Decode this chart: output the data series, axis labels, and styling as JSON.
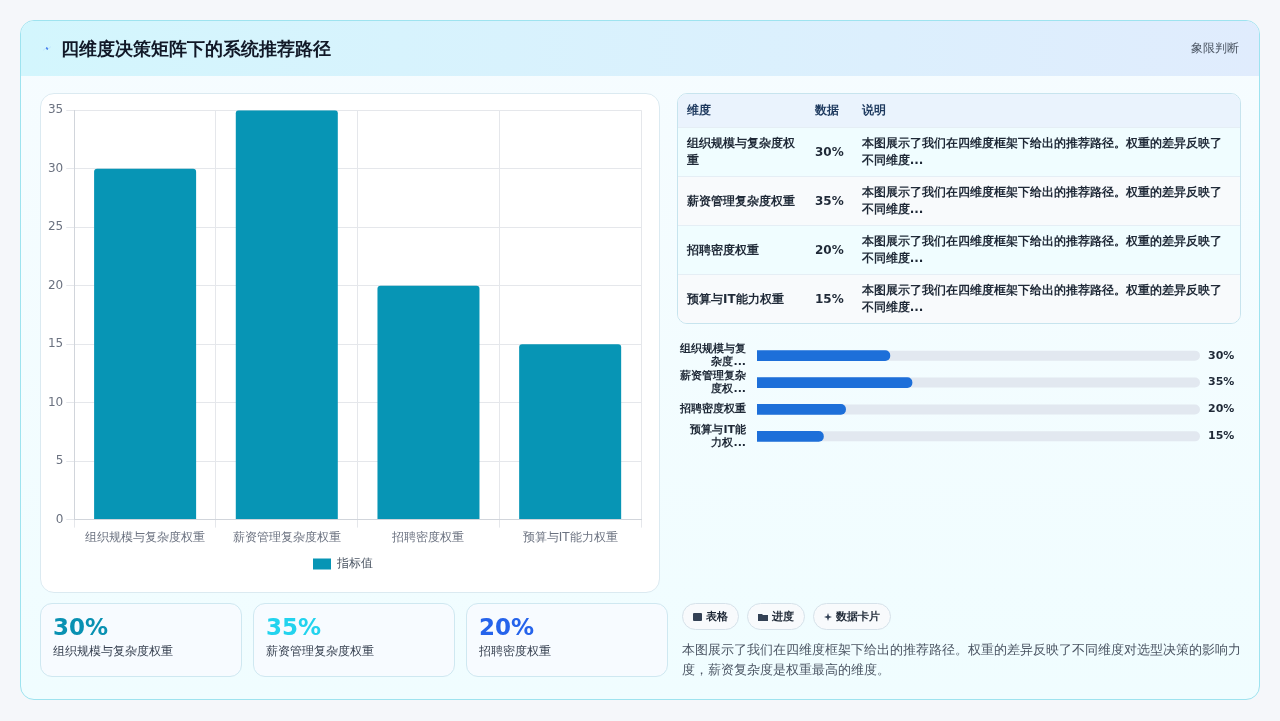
{
  "chart_data": [
    {
      "type": "bar",
      "title": "四维度决策矩阵下的系统推荐路径",
      "annotations": [
        "象限判断"
      ],
      "categories": [
        "组织规模与复杂度权重",
        "薪资管理复杂度权重",
        "招聘密度权重",
        "预算与IT能力权重"
      ],
      "series": [
        {
          "name": "指标值",
          "color": "#0795b5",
          "values": [
            30,
            35,
            20,
            15
          ]
        }
      ],
      "ylim": [
        0,
        35
      ],
      "yticks": [
        0,
        5,
        10,
        15,
        20,
        25,
        30,
        35
      ],
      "grid": true,
      "legend": "bottom"
    },
    {
      "type": "other",
      "annotations": [
        "维度",
        "数据",
        "说明",
        "本图展示了我们在四维度框架下给出的推荐路径。权重的差异反映了不同维度...",
        "本图展示了我们在四维度框架下给出的推荐路径。权重的差异反映了不同维度...",
        "本图展示了我们在四维度框架下给出的推荐路径。权重的差异反映了不同维度...",
        "本图展示了我们在四维度框架下给出的推荐路径。权重的差异反映了不同维度..."
      ],
      "categories": [
        "组织规模与复杂度权重",
        "薪资管理复杂度权重",
        "招聘密度权重",
        "预算与IT能力权重"
      ],
      "value_labels": [
        "30%",
        "35%",
        "20%",
        "15%"
      ]
    },
    {
      "type": "bar",
      "orientation": "horizontal",
      "categories": [
        "组织规模与复杂度...",
        "薪资管理复杂度权...",
        "招聘密度权重",
        "预算与IT能力权..."
      ],
      "values": [
        30,
        35,
        20,
        15
      ],
      "color": "#1d6fd9",
      "xlim": [
        0,
        100
      ],
      "value_labels": [
        "30%",
        "35%",
        "20%",
        "15%"
      ],
      "tick_labels": "y"
    },
    {
      "type": "other",
      "categories": [
        "组织规模与复杂度权重",
        "薪资管理复杂度权重",
        "招聘密度权重"
      ],
      "value_labels": [
        "30%",
        "35%",
        "20%"
      ],
      "annotations": [
        "表格",
        "进度",
        "数据卡片",
        "本图展示了我们在四维度框架下给出的推荐路径。权重的差异反映了不同维度对选型决策的影响力度，薪资复杂度是权重最高的维度。"
      ]
    }
  ]
}
